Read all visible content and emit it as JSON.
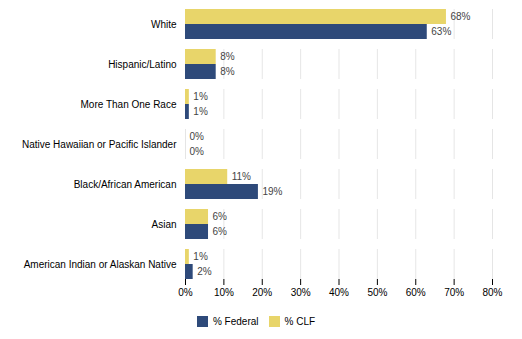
{
  "chart_data": {
    "type": "bar",
    "orientation": "horizontal",
    "categories": [
      "White",
      "Hispanic/Latino",
      "More Than One Race",
      "Native Hawaiian or Pacific Islander",
      "Black/African American",
      "Asian",
      "American Indian or Alaskan Native"
    ],
    "series": [
      {
        "name": "% Federal",
        "color": "#2E4A7A",
        "values": [
          63,
          8,
          1,
          0,
          19,
          6,
          2
        ],
        "value_labels": [
          "63%",
          "8%",
          "1%",
          "0%",
          "19%",
          "6%",
          "2%"
        ]
      },
      {
        "name": "% CLF",
        "color": "#E8D56A",
        "values": [
          68,
          8,
          1,
          0,
          11,
          6,
          1
        ],
        "value_labels": [
          "68%",
          "8%",
          "1%",
          "0%",
          "11%",
          "6%",
          "1%"
        ]
      }
    ],
    "xlim": [
      0,
      80
    ],
    "xticks": [
      {
        "value": 0,
        "label": "0%"
      },
      {
        "value": 10,
        "label": "10%"
      },
      {
        "value": 20,
        "label": "20%"
      },
      {
        "value": 30,
        "label": "30%"
      },
      {
        "value": 40,
        "label": "40%"
      },
      {
        "value": 50,
        "label": "50%"
      },
      {
        "value": 60,
        "label": "60%"
      },
      {
        "value": 70,
        "label": "70%"
      },
      {
        "value": 80,
        "label": "80%"
      }
    ],
    "grid": true,
    "data_labels": true,
    "legend": "bottom"
  }
}
